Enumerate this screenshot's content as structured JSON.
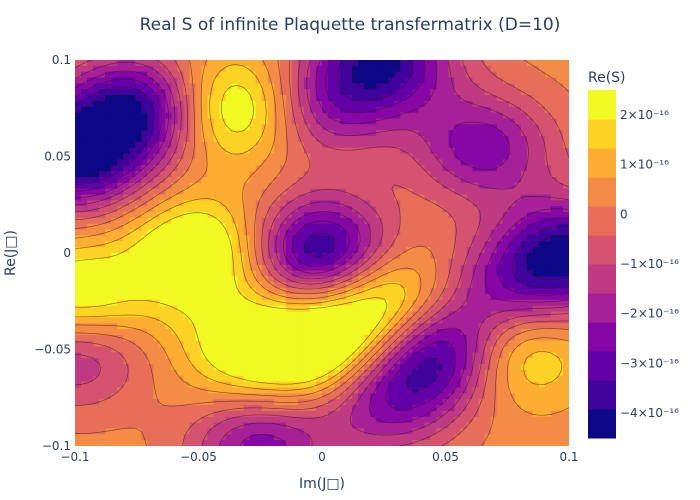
{
  "chart_data": {
    "type": "heatmap",
    "subtype": "contour",
    "title": "Real S of infinite Plaquette transfermatrix (D=10)",
    "xlabel": "Im(J□)",
    "ylabel": "Re(J□)",
    "xlim": [
      -0.1,
      0.1
    ],
    "ylim": [
      -0.1,
      0.1
    ],
    "x_ticks": [
      "−0.1",
      "−0.05",
      "0",
      "0.05",
      "0.1"
    ],
    "x_tick_values": [
      -0.1,
      -0.05,
      0,
      0.05,
      0.1
    ],
    "y_ticks": [
      "−0.1",
      "−0.05",
      "0",
      "0.05",
      "0.1"
    ],
    "y_tick_values": [
      -0.1,
      -0.05,
      0,
      0.05,
      0.1
    ],
    "colorbar": {
      "title": "Re(S)",
      "zlim": [
        -4.5e-16,
        2.5e-16
      ],
      "contour_step": 5e-17,
      "ticks": [
        "2×10⁻¹⁶",
        "1×10⁻¹⁶",
        "0",
        "−1×10⁻¹⁶",
        "−2×10⁻¹⁶",
        "−3×10⁻¹⁶",
        "−4×10⁻¹⁶"
      ],
      "tick_values": [
        2e-16,
        1e-16,
        0,
        -1e-16,
        -2e-16,
        -3e-16,
        -4e-16
      ],
      "colors": [
        "#0d0887",
        "#3e049c",
        "#6300a7",
        "#8606a6",
        "#a62098",
        "#c03a83",
        "#d5536f",
        "#e76f5a",
        "#f58c46",
        "#fdad32",
        "#fcd225",
        "#f0f921"
      ]
    },
    "features": [
      {
        "x": 0.0,
        "y": 0.0,
        "z": -4.4e-16
      },
      {
        "x": 0.05,
        "y": -0.05,
        "z": -4.2e-16
      },
      {
        "x": -0.075,
        "y": 0.075,
        "z": -3.8e-16
      },
      {
        "x": -0.1,
        "y": 0.05,
        "z": -4.2e-16
      },
      {
        "x": 0.025,
        "y": 0.1,
        "z": -3.8e-16
      },
      {
        "x": 0.1,
        "y": 0.0,
        "z": -4e-16
      },
      {
        "x": 0.065,
        "y": 0.055,
        "z": -2.8e-16
      },
      {
        "x": 0.025,
        "y": -0.075,
        "z": -2.8e-16
      },
      {
        "x": 0.075,
        "y": -0.02,
        "z": -2.2e-16
      },
      {
        "x": -0.1,
        "y": -0.05,
        "z": -2.5e-16
      },
      {
        "x": -0.025,
        "y": -0.1,
        "z": -2.8e-16
      },
      {
        "x": 0.0,
        "y": 0.075,
        "z": -2.3e-16
      },
      {
        "x": -0.035,
        "y": 0.075,
        "z": 2.2e-16
      },
      {
        "x": -0.05,
        "y": 0.0,
        "z": 2.2e-16
      },
      {
        "x": 0.0,
        "y": -0.05,
        "z": 2.3e-16
      },
      {
        "x": 0.025,
        "y": -0.025,
        "z": 2.3e-16
      },
      {
        "x": 0.075,
        "y": -0.05,
        "z": 2.2e-16
      },
      {
        "x": -0.1,
        "y": -0.025,
        "z": 2.2e-16
      },
      {
        "x": -0.03,
        "y": -0.05,
        "z": 1.5e-16
      }
    ]
  }
}
